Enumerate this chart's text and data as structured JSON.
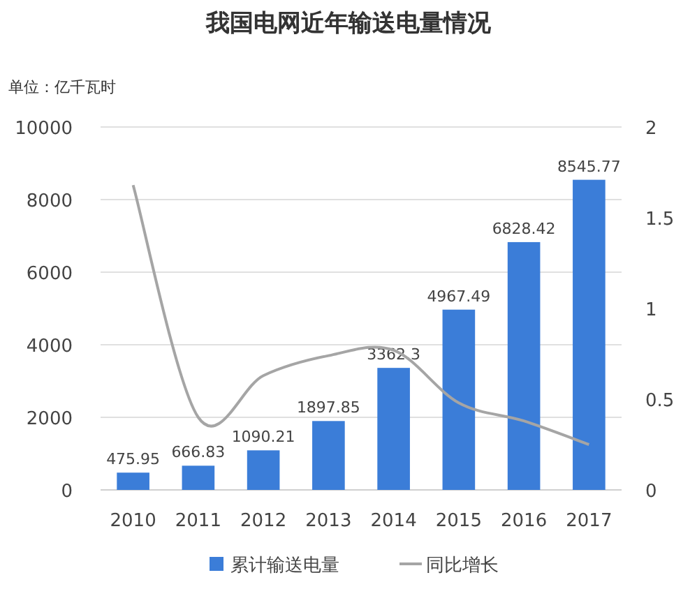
{
  "chart_data": {
    "type": "bar",
    "title": "我国电网近年输送电量情况",
    "ylabel": "单位：亿千瓦时",
    "categories": [
      "2010",
      "2011",
      "2012",
      "2013",
      "2014",
      "2015",
      "2016",
      "2017"
    ],
    "series": [
      {
        "name": "累计输送电量",
        "color": "#3b7dd8",
        "values": [
          475.95,
          666.83,
          1090.21,
          1897.85,
          3362.3,
          4967.49,
          6828.42,
          8545.77
        ],
        "value_labels": [
          "475.95",
          "666.83",
          "1090.21",
          "1897.85",
          "3362.3",
          "4967.49",
          "6828.42",
          "8545.77"
        ]
      },
      {
        "name": "同比增长",
        "type": "line",
        "axis": "y2",
        "color": "#a5a5a5",
        "marker": "none",
        "values": [
          1.68,
          0.4,
          0.63,
          0.74,
          0.77,
          0.48,
          0.38,
          0.25
        ]
      }
    ],
    "ylim": [
      0,
      10000
    ],
    "yticks": [
      0,
      2000,
      4000,
      6000,
      8000,
      10000
    ],
    "y2lim": [
      0,
      2
    ],
    "y2ticks": [
      0,
      0.5,
      1,
      1.5,
      2
    ],
    "grid": "y",
    "legend": "bottom"
  }
}
